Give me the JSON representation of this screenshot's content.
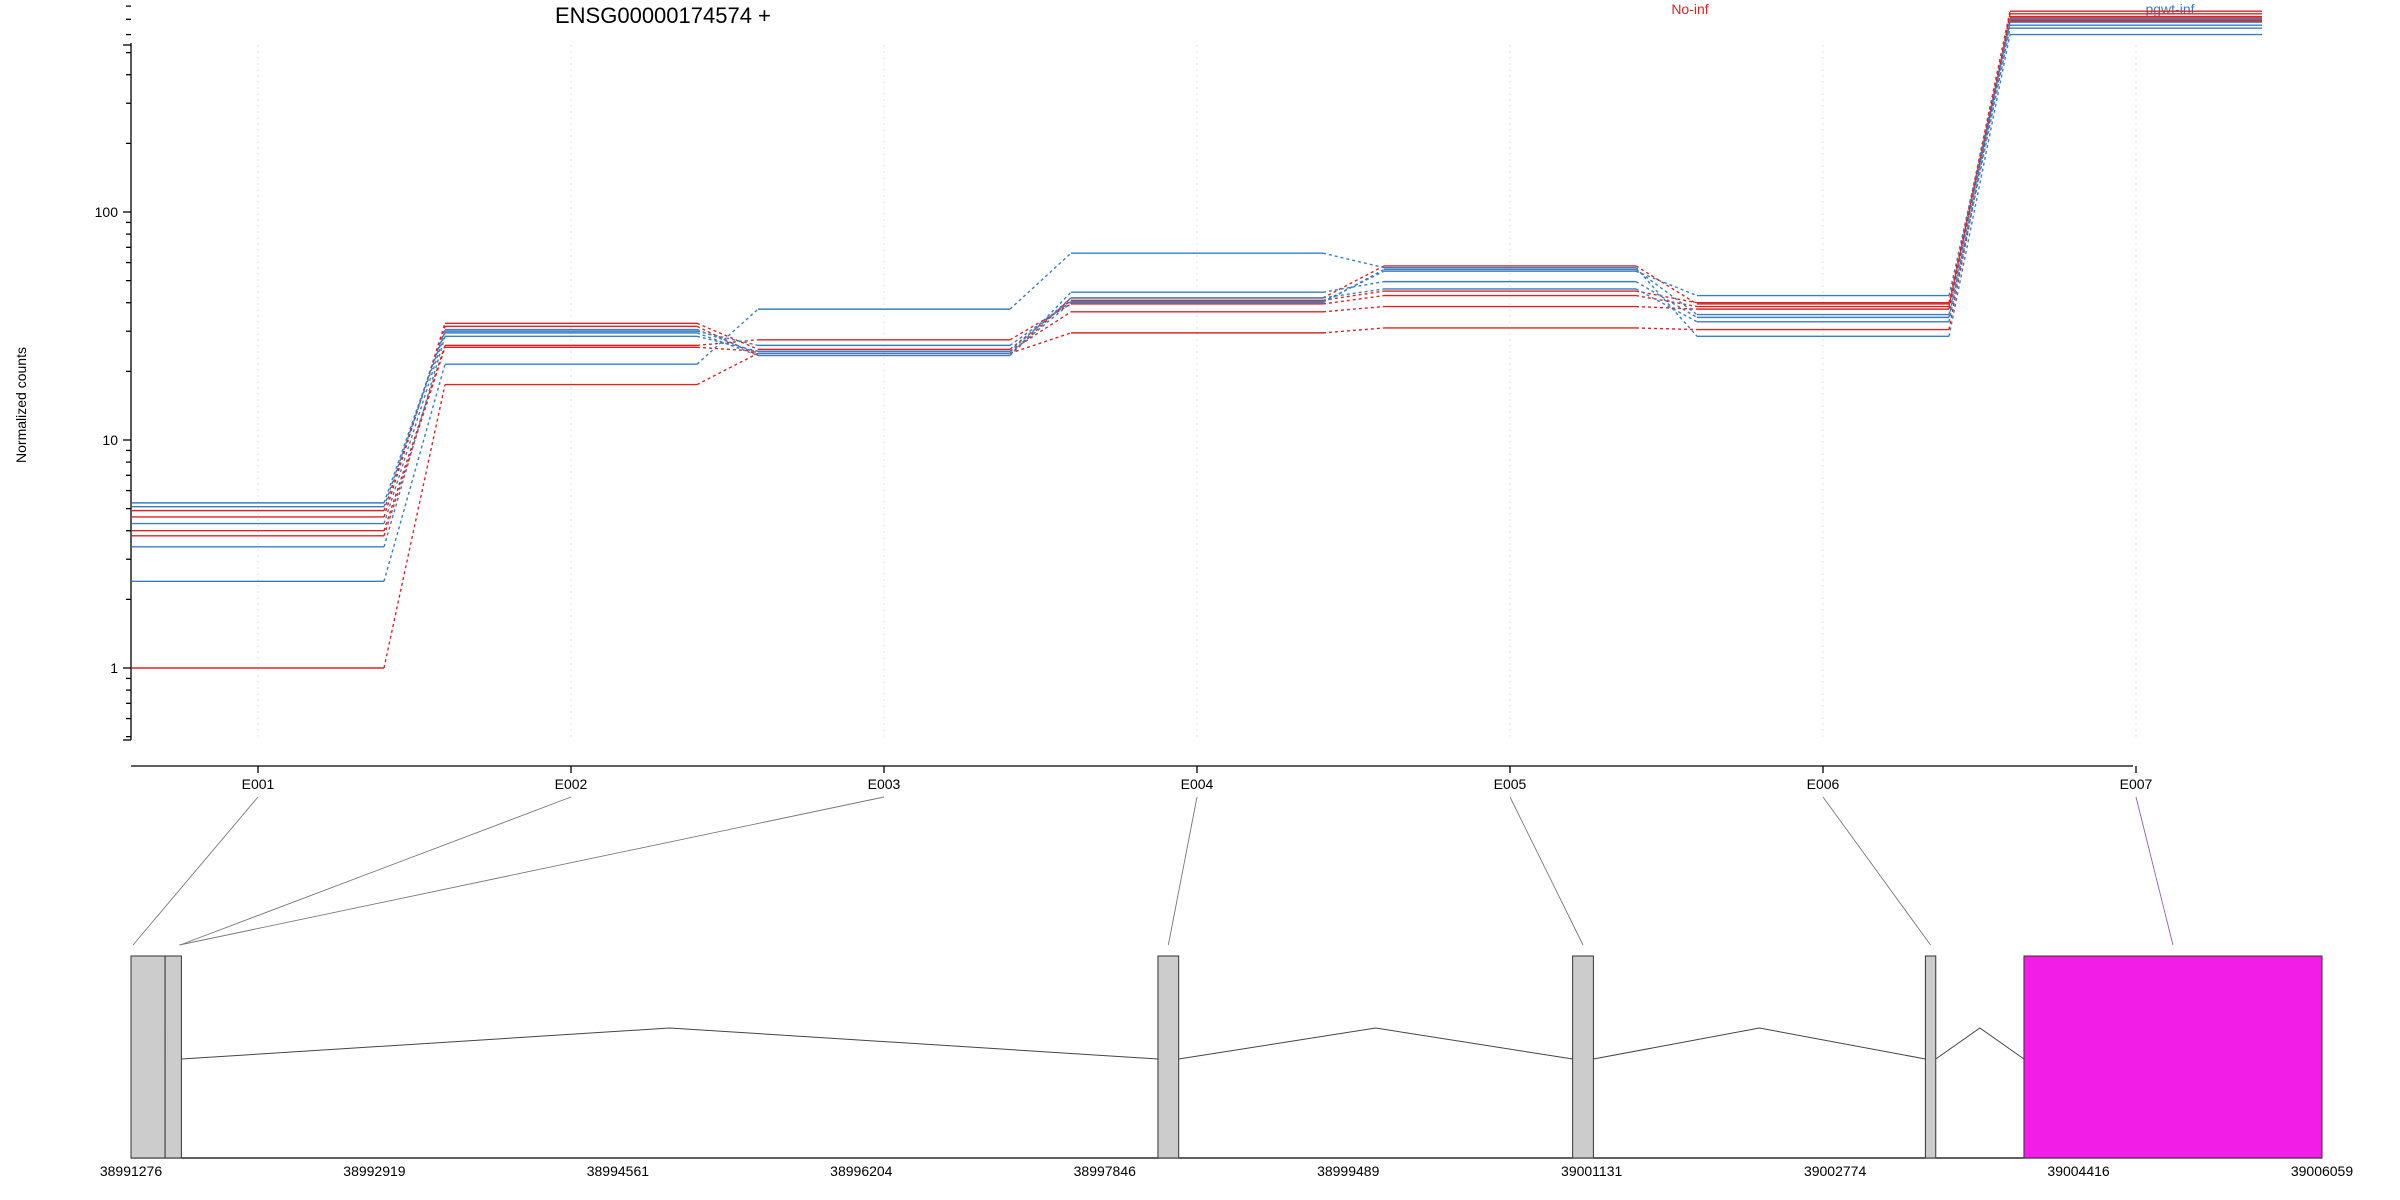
{
  "chart_data": {
    "type": "line",
    "title": "ENSG00000174574 +",
    "ylabel": "Normalized counts",
    "xlabel": "",
    "y_scale": "log",
    "ylim": [
      0.5,
      900
    ],
    "y_ticks": [
      "1",
      "10",
      "100"
    ],
    "categories": [
      "E001",
      "E002",
      "E003",
      "E004",
      "E005",
      "E006",
      "E007"
    ],
    "legend": [
      {
        "label": "No-inf",
        "color": "#d62728"
      },
      {
        "label": "pgwt-inf",
        "color": "#3a7ec0"
      }
    ],
    "series": [
      {
        "group": "No-inf",
        "color": "#d62728",
        "values": [
          1.0,
          17.5,
          24.0,
          29.5,
          31.0,
          30.5,
          740
        ]
      },
      {
        "group": "No-inf",
        "color": "#d62728",
        "values": [
          3.8,
          25.5,
          24.5,
          36.5,
          38.5,
          37.5,
          710
        ]
      },
      {
        "group": "No-inf",
        "color": "#d62728",
        "values": [
          4.0,
          26.0,
          27.5,
          39.5,
          43.0,
          38.5,
          690
        ]
      },
      {
        "group": "No-inf",
        "color": "#d62728",
        "values": [
          4.6,
          32.5,
          25.0,
          41.0,
          45.0,
          40.0,
          760
        ]
      },
      {
        "group": "No-inf",
        "color": "#d62728",
        "values": [
          4.9,
          31.5,
          23.5,
          42.0,
          58.0,
          39.5,
          720
        ]
      },
      {
        "group": "pgwt-inf",
        "color": "#3a7ec0",
        "values": [
          2.4,
          21.5,
          37.5,
          66.0,
          57.0,
          28.5,
          600
        ]
      },
      {
        "group": "pgwt-inf",
        "color": "#3a7ec0",
        "values": [
          3.4,
          28.5,
          24.5,
          42.0,
          46.0,
          33.0,
          640
        ]
      },
      {
        "group": "pgwt-inf",
        "color": "#3a7ec0",
        "values": [
          4.3,
          29.5,
          23.5,
          44.5,
          49.5,
          34.5,
          660
        ]
      },
      {
        "group": "pgwt-inf",
        "color": "#3a7ec0",
        "values": [
          5.1,
          30.0,
          26.0,
          40.5,
          55.0,
          43.0,
          680
        ]
      },
      {
        "group": "pgwt-inf",
        "color": "#3a7ec0",
        "values": [
          5.3,
          30.5,
          24.0,
          40.0,
          56.0,
          35.5,
          700
        ]
      }
    ],
    "gene_model": {
      "coord_ticks": [
        "38991276",
        "38992919",
        "38994561",
        "38996204",
        "38997846",
        "38999489",
        "39001131",
        "39002774",
        "39004416",
        "39006059"
      ],
      "coord_range": [
        38991276,
        39006059
      ],
      "exons": [
        {
          "id": "E001",
          "start": 38991276,
          "end": 38991506,
          "color": "#cccccc"
        },
        {
          "id": "E002",
          "start": 38991506,
          "end": 38991616,
          "color": "#cccccc"
        },
        {
          "id": "E003",
          "start": 38991506,
          "end": 38991616,
          "color": "#cccccc"
        },
        {
          "id": "E004",
          "start": 38998205,
          "end": 38998345,
          "color": "#cccccc"
        },
        {
          "id": "E005",
          "start": 39001003,
          "end": 39001143,
          "color": "#cccccc"
        },
        {
          "id": "E006",
          "start": 39003383,
          "end": 39003453,
          "color": "#cccccc"
        },
        {
          "id": "E007",
          "start": 39004048,
          "end": 39006059,
          "color": "#f21ee8"
        }
      ],
      "highlight_color": "#f21ee8"
    }
  }
}
